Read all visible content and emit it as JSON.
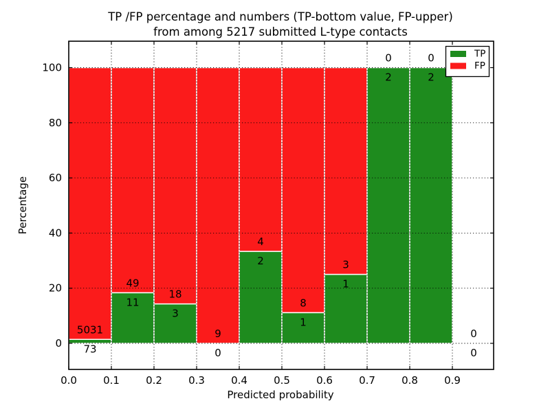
{
  "title": {
    "line1": "TP /FP percentage and numbers (TP-bottom value, FP-upper)",
    "line2": "from among 5217 submitted L-type contacts"
  },
  "axes": {
    "x_label": "Predicted probability",
    "y_label": "Percentage",
    "x_ticks": [
      "0.0",
      "0.1",
      "0.2",
      "0.3",
      "0.4",
      "0.5",
      "0.6",
      "0.7",
      "0.8",
      "0.9"
    ],
    "y_ticks": [
      "0",
      "20",
      "40",
      "60",
      "80",
      "100"
    ]
  },
  "legend": {
    "items": [
      {
        "label": "TP",
        "color": "#1e8b1e"
      },
      {
        "label": "FP",
        "color": "#fb1b1b"
      }
    ]
  },
  "chart_data": {
    "type": "bar",
    "stacked": true,
    "normalized": "percent",
    "title": "TP /FP percentage and numbers (TP-bottom value, FP-upper) from among 5217 submitted L-type contacts",
    "xlabel": "Predicted probability",
    "ylabel": "Percentage",
    "xlim": [
      0.0,
      1.0
    ],
    "ylim": [
      -10,
      110
    ],
    "grid": "dotted",
    "legend_position": "upper right",
    "total_submitted": 5217,
    "bin_edges": [
      0.0,
      0.1,
      0.2,
      0.3,
      0.4,
      0.5,
      0.6,
      0.7,
      0.8,
      0.9,
      1.0
    ],
    "x_tick_values": [
      0.0,
      0.1,
      0.2,
      0.3,
      0.4,
      0.5,
      0.6,
      0.7,
      0.8,
      0.9
    ],
    "y_tick_values": [
      0,
      20,
      40,
      60,
      80,
      100
    ],
    "series": [
      {
        "name": "TP",
        "color": "#1e8b1e",
        "counts": [
          73,
          11,
          3,
          0,
          2,
          1,
          1,
          2,
          2,
          0
        ],
        "percent": [
          1.43,
          18.33,
          14.29,
          0.0,
          33.33,
          11.11,
          25.0,
          100.0,
          100.0,
          0.0
        ]
      },
      {
        "name": "FP",
        "color": "#fb1b1b",
        "counts": [
          5031,
          49,
          18,
          9,
          4,
          8,
          3,
          0,
          0,
          0
        ],
        "percent": [
          98.57,
          81.67,
          85.71,
          100.0,
          66.67,
          88.89,
          75.0,
          0.0,
          0.0,
          0.0
        ]
      }
    ],
    "annotation_note": "FP count printed just above each stack boundary, TP count just below it"
  }
}
